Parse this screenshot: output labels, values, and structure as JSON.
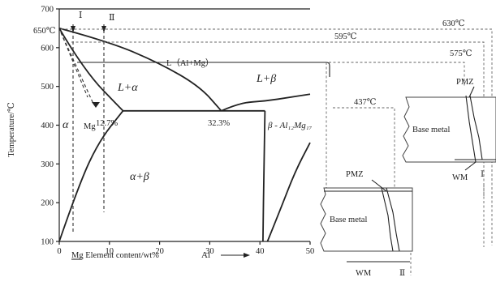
{
  "chart_data": {
    "type": "phase-diagram",
    "xlabel": "Mg Element content/wt%",
    "x_right_label": "Al",
    "ylabel": "Temperature/℃",
    "xlim": [
      0,
      50
    ],
    "ylim": [
      100,
      700
    ],
    "x_ticks": [
      "0",
      "10",
      "20",
      "30",
      "40",
      "50"
    ],
    "y_ticks": [
      "100",
      "200",
      "300",
      "400",
      "500",
      "600",
      "700"
    ],
    "regions": {
      "liquid_alpha": "L+α",
      "liquid_beta": "L+β",
      "alpha": "α",
      "alpha_beta": "α+β",
      "beta": "β - Al₁₂Mg₁₇",
      "liquid": "L（Al+Mg）"
    },
    "annotations": {
      "mg_melting": "650℃",
      "eutectic_left": "12.7%",
      "eutectic_right": "32.3%",
      "mg_marker": "Mg",
      "line_i": "Ⅰ",
      "line_ii": "Ⅱ"
    },
    "temperature_marks": [
      "630℃",
      "595℃",
      "575℃",
      "437℃"
    ],
    "liquidus_left": [
      [
        0,
        650
      ],
      [
        10,
        615
      ],
      [
        20,
        560
      ],
      [
        28,
        500
      ],
      [
        32.3,
        437
      ]
    ],
    "liquidus_right": [
      [
        32.3,
        437
      ],
      [
        36,
        458
      ],
      [
        41,
        462
      ],
      [
        46,
        472
      ],
      [
        50,
        480
      ]
    ],
    "solidus_left": [
      [
        0,
        650
      ],
      [
        5,
        540
      ],
      [
        12.7,
        437
      ]
    ],
    "eutectic_line": [
      [
        12.7,
        437
      ],
      [
        41,
        437
      ]
    ],
    "solvus_alpha": [
      [
        0,
        100
      ],
      [
        4,
        250
      ],
      [
        8,
        360
      ],
      [
        12.7,
        437
      ]
    ],
    "beta_left": [
      [
        41,
        437
      ],
      [
        40.8,
        300
      ],
      [
        40.6,
        100
      ]
    ],
    "beta_right": [
      [
        41.5,
        100
      ],
      [
        44,
        180
      ],
      [
        47,
        280
      ],
      [
        50,
        355
      ]
    ]
  },
  "panels": {
    "upper": {
      "label_base": "Base metal",
      "label_pmz": "PMZ",
      "label_wm": "WM",
      "label_index": "Ⅰ"
    },
    "lower": {
      "label_base": "Base metal",
      "label_pmz": "PMZ",
      "label_wm": "WM",
      "label_index": "Ⅱ"
    }
  }
}
